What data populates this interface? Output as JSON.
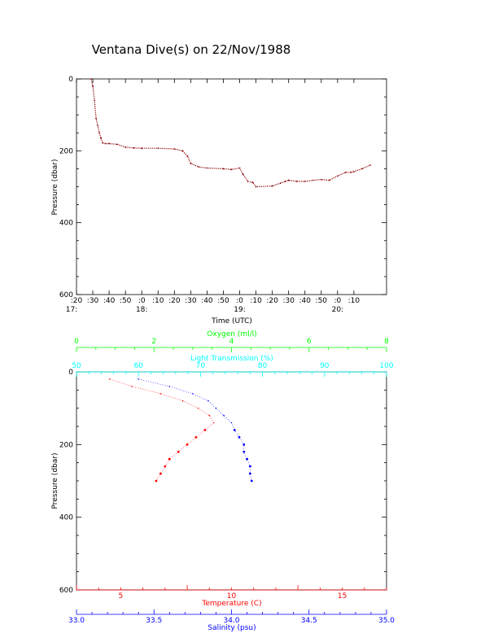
{
  "title": "Ventana Dive(s) on 22/Nov/1988",
  "colors": {
    "axis": "#000000",
    "depth_trace": "#8b0000",
    "temperature": "#ff0000",
    "salinity": "#0000ff",
    "oxygen": "#00ff00",
    "light_transmission": "#00ffff"
  },
  "chart_data": [
    {
      "type": "line",
      "title": "Ventana Dive(s) on 22/Nov/1988",
      "xlabel": "Time (UTC)",
      "ylabel": "Pressure (dbar)",
      "ylim": [
        600,
        0
      ],
      "yticks": [
        "0",
        "200",
        "400",
        "600"
      ],
      "xtick_labels": [
        ":20",
        ":30",
        ":40",
        ":50",
        ":0",
        ":10",
        ":20",
        ":30",
        ":40",
        ":50",
        ":0",
        ":10",
        ":20",
        ":30",
        ":40",
        ":50",
        ":0",
        ":10"
      ],
      "hour_labels": [
        "17:",
        "18:",
        "19:",
        "20:"
      ],
      "series": [
        {
          "x_minutes_after_1700": [
            29,
            30,
            31,
            32,
            33,
            34,
            35,
            36,
            38,
            40,
            45,
            50,
            55,
            60,
            70,
            80,
            85,
            88,
            90,
            95,
            100,
            110,
            115,
            120,
            122,
            125,
            128,
            130,
            140,
            145,
            148,
            150,
            155,
            160,
            165,
            170,
            175,
            180,
            185,
            188,
            190,
            195,
            200
          ],
          "y": [
            0,
            20,
            60,
            110,
            130,
            150,
            165,
            178,
            180,
            180,
            182,
            190,
            192,
            193,
            193,
            195,
            200,
            215,
            235,
            245,
            248,
            250,
            252,
            248,
            265,
            285,
            288,
            300,
            298,
            290,
            285,
            282,
            285,
            285,
            282,
            280,
            282,
            270,
            260,
            260,
            258,
            250,
            240
          ]
        }
      ]
    },
    {
      "type": "scatter",
      "ylabel": "Pressure (dbar)",
      "ylim": [
        600,
        0
      ],
      "yticks": [
        "0",
        "200",
        "400",
        "600"
      ],
      "axes": {
        "oxygen": {
          "label": "Oxygen (ml/l)",
          "range": [
            0,
            8
          ],
          "ticks": [
            "0",
            "2",
            "4",
            "6",
            "8"
          ]
        },
        "light_transmission": {
          "label": "Light Transmission (%)",
          "range": [
            50,
            100
          ],
          "ticks": [
            "50",
            "60",
            "70",
            "80",
            "90",
            "100"
          ]
        },
        "temperature": {
          "label": "Temperature (C)",
          "range": [
            3,
            17
          ],
          "ticks": [
            "5",
            "10",
            "15"
          ]
        },
        "salinity": {
          "label": "Salinity (psu)",
          "range": [
            33.0,
            35.0
          ],
          "ticks": [
            "33.0",
            "33.5",
            "34.0",
            "34.5",
            "35.0"
          ]
        }
      },
      "series": [
        {
          "axis": "temperature",
          "points": [
            [
              4.5,
              20
            ],
            [
              5.5,
              40
            ],
            [
              6.8,
              60
            ],
            [
              7.8,
              80
            ],
            [
              8.5,
              100
            ],
            [
              9.0,
              120
            ],
            [
              9.2,
              140
            ],
            [
              8.8,
              160
            ],
            [
              8.4,
              180
            ],
            [
              8.0,
              200
            ],
            [
              7.6,
              220
            ],
            [
              7.2,
              240
            ],
            [
              7.0,
              260
            ],
            [
              6.8,
              280
            ],
            [
              6.6,
              300
            ]
          ]
        },
        {
          "axis": "salinity",
          "points": [
            [
              33.4,
              20
            ],
            [
              33.6,
              40
            ],
            [
              33.75,
              60
            ],
            [
              33.85,
              80
            ],
            [
              33.9,
              100
            ],
            [
              33.95,
              120
            ],
            [
              34.0,
              140
            ],
            [
              34.02,
              160
            ],
            [
              34.05,
              180
            ],
            [
              34.08,
              200
            ],
            [
              34.08,
              220
            ],
            [
              34.1,
              240
            ],
            [
              34.12,
              260
            ],
            [
              34.12,
              280
            ],
            [
              34.13,
              300
            ]
          ]
        }
      ]
    }
  ]
}
